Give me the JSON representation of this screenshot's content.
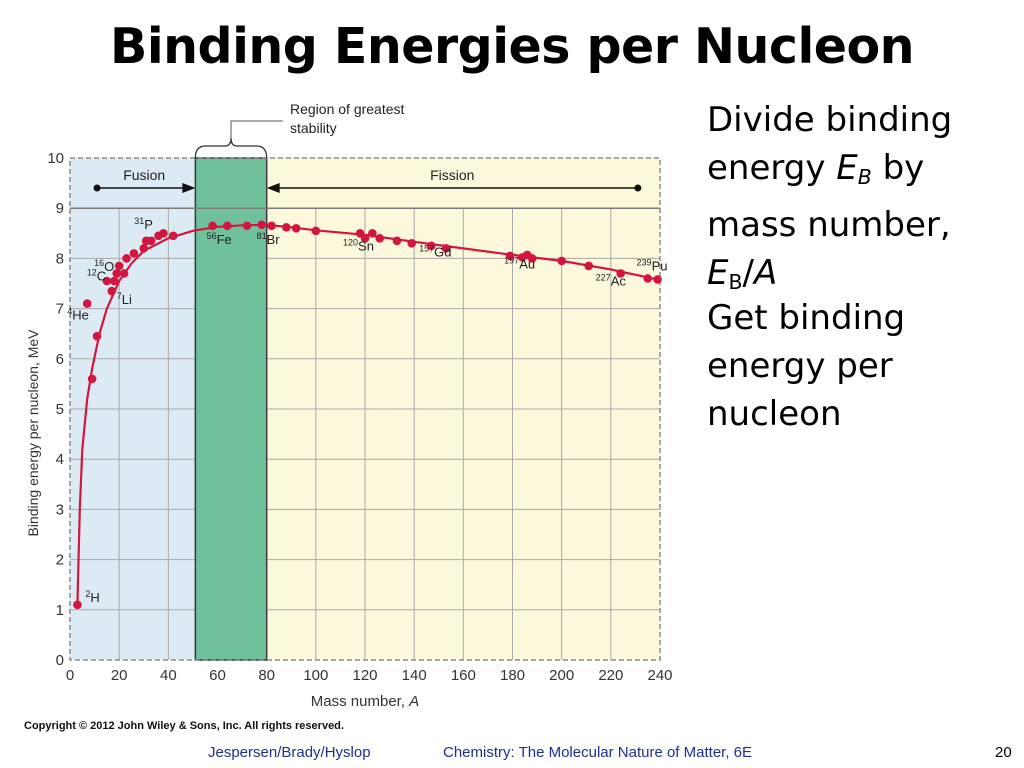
{
  "slide": {
    "title": "Binding Energies per Nucleon",
    "page_number": "20",
    "footer_authors": "Jespersen/Brady/Hyslop",
    "footer_book": "Chemistry: The Molecular Nature of Matter, 6E",
    "copyright": "Copyright © 2012 John Wiley & Sons, Inc. All rights reserved."
  },
  "bullets": {
    "b1_line1": "Divide binding",
    "b1_energy": "energy",
    "b1_E": "E",
    "b1_sub": "B",
    "b1_by": "by",
    "b1_line3": "mass number,",
    "b1_E2": "E",
    "b1_sub2": "B",
    "b1_slash": "/",
    "b1_A": "A",
    "b2_line1": "Get binding",
    "b2_line2": "energy per",
    "b2_line3": "nucleon"
  },
  "colors": {
    "curve": "#d3163f",
    "fusion_bg": "#dceaf3",
    "fission_bg": "#fbf8dc",
    "stability_band": "#6ec19b",
    "title": "#000000",
    "footer": "#1f2f8f"
  },
  "chart_data": {
    "type": "scatter",
    "xlabel": "Mass number, A",
    "ylabel": "Binding energy per nucleon, MeV",
    "xlim": [
      0,
      240
    ],
    "ylim": [
      0,
      10
    ],
    "x_ticks": [
      0,
      20,
      40,
      60,
      80,
      100,
      120,
      140,
      160,
      180,
      200,
      220,
      240
    ],
    "y_ticks": [
      0,
      1,
      2,
      3,
      4,
      5,
      6,
      7,
      8,
      9,
      10
    ],
    "grid": true,
    "points": [
      {
        "x": 3,
        "y": 1.1
      },
      {
        "x": 7,
        "y": 7.1
      },
      {
        "x": 9,
        "y": 5.6
      },
      {
        "x": 11,
        "y": 6.45
      },
      {
        "x": 15,
        "y": 7.55
      },
      {
        "x": 17,
        "y": 7.35
      },
      {
        "x": 18,
        "y": 7.55
      },
      {
        "x": 19,
        "y": 7.7
      },
      {
        "x": 20,
        "y": 7.85
      },
      {
        "x": 22,
        "y": 7.7
      },
      {
        "x": 23,
        "y": 8.0
      },
      {
        "x": 26,
        "y": 8.1
      },
      {
        "x": 30,
        "y": 8.2
      },
      {
        "x": 31,
        "y": 8.35
      },
      {
        "x": 33,
        "y": 8.35
      },
      {
        "x": 36,
        "y": 8.45
      },
      {
        "x": 38,
        "y": 8.5
      },
      {
        "x": 42,
        "y": 8.45
      },
      {
        "x": 58,
        "y": 8.65
      },
      {
        "x": 64,
        "y": 8.65
      },
      {
        "x": 72,
        "y": 8.65
      },
      {
        "x": 78,
        "y": 8.67
      },
      {
        "x": 82,
        "y": 8.65
      },
      {
        "x": 88,
        "y": 8.62
      },
      {
        "x": 92,
        "y": 8.6
      },
      {
        "x": 100,
        "y": 8.55
      },
      {
        "x": 118,
        "y": 8.5
      },
      {
        "x": 120,
        "y": 8.4
      },
      {
        "x": 123,
        "y": 8.5
      },
      {
        "x": 126,
        "y": 8.4
      },
      {
        "x": 133,
        "y": 8.35
      },
      {
        "x": 139,
        "y": 8.3
      },
      {
        "x": 147,
        "y": 8.25
      },
      {
        "x": 153,
        "y": 8.2
      },
      {
        "x": 179,
        "y": 8.05
      },
      {
        "x": 184,
        "y": 8.02
      },
      {
        "x": 186,
        "y": 8.07
      },
      {
        "x": 188,
        "y": 8.0
      },
      {
        "x": 200,
        "y": 7.95
      },
      {
        "x": 211,
        "y": 7.85
      },
      {
        "x": 224,
        "y": 7.7
      },
      {
        "x": 235,
        "y": 7.6
      },
      {
        "x": 239,
        "y": 7.58
      }
    ],
    "curve": [
      [
        3,
        1.1
      ],
      [
        4,
        3.0
      ],
      [
        5,
        4.2
      ],
      [
        7,
        5.2
      ],
      [
        9,
        5.8
      ],
      [
        12,
        6.5
      ],
      [
        15,
        7.0
      ],
      [
        20,
        7.55
      ],
      [
        25,
        7.9
      ],
      [
        30,
        8.15
      ],
      [
        40,
        8.4
      ],
      [
        50,
        8.55
      ],
      [
        60,
        8.63
      ],
      [
        70,
        8.66
      ],
      [
        80,
        8.67
      ],
      [
        90,
        8.62
      ],
      [
        100,
        8.56
      ],
      [
        120,
        8.47
      ],
      [
        140,
        8.33
      ],
      [
        160,
        8.2
      ],
      [
        180,
        8.07
      ],
      [
        200,
        7.95
      ],
      [
        220,
        7.78
      ],
      [
        240,
        7.57
      ]
    ],
    "regions": [
      {
        "label": "Fusion",
        "from": 0,
        "to": 51
      },
      {
        "label": "Fission",
        "from": 80,
        "to": 240
      }
    ],
    "stability_band": {
      "from": 51,
      "to": 80,
      "label": "Region of greatest stability"
    },
    "labels": [
      {
        "sup": "2",
        "el": "H",
        "x": 3,
        "y": 1.1
      },
      {
        "sup": "4",
        "el": "He",
        "x": 7,
        "y": 7.1
      },
      {
        "sup": "7",
        "el": "Li",
        "x": 17,
        "y": 7.35
      },
      {
        "sup": "12",
        "el": "C",
        "x": 19,
        "y": 7.7
      },
      {
        "sup": "16",
        "el": "O",
        "x": 20,
        "y": 7.85
      },
      {
        "sup": "31",
        "el": "P",
        "x": 31,
        "y": 8.35
      },
      {
        "sup": "56",
        "el": "Fe",
        "x": 58,
        "y": 8.65
      },
      {
        "sup": "81",
        "el": "Br",
        "x": 82,
        "y": 8.65
      },
      {
        "sup": "120",
        "el": "Sn",
        "x": 120,
        "y": 8.4
      },
      {
        "sup": "157",
        "el": "Gd",
        "x": 153,
        "y": 8.2
      },
      {
        "sup": "197",
        "el": "Au",
        "x": 188,
        "y": 8.0
      },
      {
        "sup": "227",
        "el": "Ac",
        "x": 224,
        "y": 7.7
      },
      {
        "sup": "239",
        "el": "Pu",
        "x": 239,
        "y": 7.58
      }
    ]
  }
}
